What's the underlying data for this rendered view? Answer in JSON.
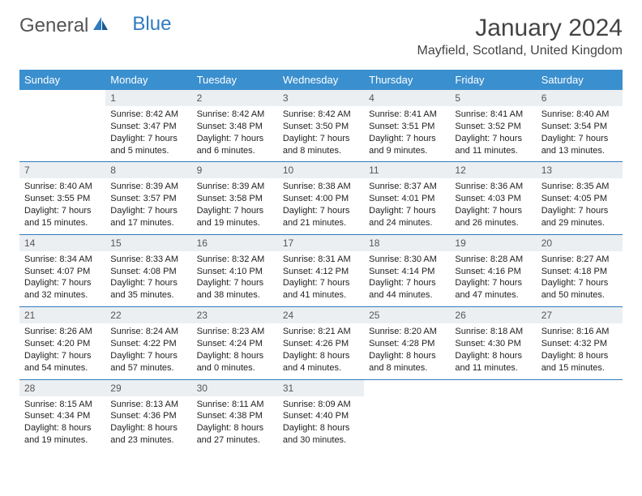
{
  "logo": {
    "text1": "General",
    "text2": "Blue"
  },
  "title": "January 2024",
  "location": "Mayfield, Scotland, United Kingdom",
  "colors": {
    "header_bg": "#3a8fce",
    "border": "#2f7bbf",
    "daynum_bg": "#eceff1",
    "text": "#222222",
    "logo_gray": "#555555",
    "logo_blue": "#2f7bbf"
  },
  "weekdays": [
    "Sunday",
    "Monday",
    "Tuesday",
    "Wednesday",
    "Thursday",
    "Friday",
    "Saturday"
  ],
  "weeks": [
    [
      null,
      {
        "n": "1",
        "sr": "Sunrise: 8:42 AM",
        "ss": "Sunset: 3:47 PM",
        "d1": "Daylight: 7 hours",
        "d2": "and 5 minutes."
      },
      {
        "n": "2",
        "sr": "Sunrise: 8:42 AM",
        "ss": "Sunset: 3:48 PM",
        "d1": "Daylight: 7 hours",
        "d2": "and 6 minutes."
      },
      {
        "n": "3",
        "sr": "Sunrise: 8:42 AM",
        "ss": "Sunset: 3:50 PM",
        "d1": "Daylight: 7 hours",
        "d2": "and 8 minutes."
      },
      {
        "n": "4",
        "sr": "Sunrise: 8:41 AM",
        "ss": "Sunset: 3:51 PM",
        "d1": "Daylight: 7 hours",
        "d2": "and 9 minutes."
      },
      {
        "n": "5",
        "sr": "Sunrise: 8:41 AM",
        "ss": "Sunset: 3:52 PM",
        "d1": "Daylight: 7 hours",
        "d2": "and 11 minutes."
      },
      {
        "n": "6",
        "sr": "Sunrise: 8:40 AM",
        "ss": "Sunset: 3:54 PM",
        "d1": "Daylight: 7 hours",
        "d2": "and 13 minutes."
      }
    ],
    [
      {
        "n": "7",
        "sr": "Sunrise: 8:40 AM",
        "ss": "Sunset: 3:55 PM",
        "d1": "Daylight: 7 hours",
        "d2": "and 15 minutes."
      },
      {
        "n": "8",
        "sr": "Sunrise: 8:39 AM",
        "ss": "Sunset: 3:57 PM",
        "d1": "Daylight: 7 hours",
        "d2": "and 17 minutes."
      },
      {
        "n": "9",
        "sr": "Sunrise: 8:39 AM",
        "ss": "Sunset: 3:58 PM",
        "d1": "Daylight: 7 hours",
        "d2": "and 19 minutes."
      },
      {
        "n": "10",
        "sr": "Sunrise: 8:38 AM",
        "ss": "Sunset: 4:00 PM",
        "d1": "Daylight: 7 hours",
        "d2": "and 21 minutes."
      },
      {
        "n": "11",
        "sr": "Sunrise: 8:37 AM",
        "ss": "Sunset: 4:01 PM",
        "d1": "Daylight: 7 hours",
        "d2": "and 24 minutes."
      },
      {
        "n": "12",
        "sr": "Sunrise: 8:36 AM",
        "ss": "Sunset: 4:03 PM",
        "d1": "Daylight: 7 hours",
        "d2": "and 26 minutes."
      },
      {
        "n": "13",
        "sr": "Sunrise: 8:35 AM",
        "ss": "Sunset: 4:05 PM",
        "d1": "Daylight: 7 hours",
        "d2": "and 29 minutes."
      }
    ],
    [
      {
        "n": "14",
        "sr": "Sunrise: 8:34 AM",
        "ss": "Sunset: 4:07 PM",
        "d1": "Daylight: 7 hours",
        "d2": "and 32 minutes."
      },
      {
        "n": "15",
        "sr": "Sunrise: 8:33 AM",
        "ss": "Sunset: 4:08 PM",
        "d1": "Daylight: 7 hours",
        "d2": "and 35 minutes."
      },
      {
        "n": "16",
        "sr": "Sunrise: 8:32 AM",
        "ss": "Sunset: 4:10 PM",
        "d1": "Daylight: 7 hours",
        "d2": "and 38 minutes."
      },
      {
        "n": "17",
        "sr": "Sunrise: 8:31 AM",
        "ss": "Sunset: 4:12 PM",
        "d1": "Daylight: 7 hours",
        "d2": "and 41 minutes."
      },
      {
        "n": "18",
        "sr": "Sunrise: 8:30 AM",
        "ss": "Sunset: 4:14 PM",
        "d1": "Daylight: 7 hours",
        "d2": "and 44 minutes."
      },
      {
        "n": "19",
        "sr": "Sunrise: 8:28 AM",
        "ss": "Sunset: 4:16 PM",
        "d1": "Daylight: 7 hours",
        "d2": "and 47 minutes."
      },
      {
        "n": "20",
        "sr": "Sunrise: 8:27 AM",
        "ss": "Sunset: 4:18 PM",
        "d1": "Daylight: 7 hours",
        "d2": "and 50 minutes."
      }
    ],
    [
      {
        "n": "21",
        "sr": "Sunrise: 8:26 AM",
        "ss": "Sunset: 4:20 PM",
        "d1": "Daylight: 7 hours",
        "d2": "and 54 minutes."
      },
      {
        "n": "22",
        "sr": "Sunrise: 8:24 AM",
        "ss": "Sunset: 4:22 PM",
        "d1": "Daylight: 7 hours",
        "d2": "and 57 minutes."
      },
      {
        "n": "23",
        "sr": "Sunrise: 8:23 AM",
        "ss": "Sunset: 4:24 PM",
        "d1": "Daylight: 8 hours",
        "d2": "and 0 minutes."
      },
      {
        "n": "24",
        "sr": "Sunrise: 8:21 AM",
        "ss": "Sunset: 4:26 PM",
        "d1": "Daylight: 8 hours",
        "d2": "and 4 minutes."
      },
      {
        "n": "25",
        "sr": "Sunrise: 8:20 AM",
        "ss": "Sunset: 4:28 PM",
        "d1": "Daylight: 8 hours",
        "d2": "and 8 minutes."
      },
      {
        "n": "26",
        "sr": "Sunrise: 8:18 AM",
        "ss": "Sunset: 4:30 PM",
        "d1": "Daylight: 8 hours",
        "d2": "and 11 minutes."
      },
      {
        "n": "27",
        "sr": "Sunrise: 8:16 AM",
        "ss": "Sunset: 4:32 PM",
        "d1": "Daylight: 8 hours",
        "d2": "and 15 minutes."
      }
    ],
    [
      {
        "n": "28",
        "sr": "Sunrise: 8:15 AM",
        "ss": "Sunset: 4:34 PM",
        "d1": "Daylight: 8 hours",
        "d2": "and 19 minutes."
      },
      {
        "n": "29",
        "sr": "Sunrise: 8:13 AM",
        "ss": "Sunset: 4:36 PM",
        "d1": "Daylight: 8 hours",
        "d2": "and 23 minutes."
      },
      {
        "n": "30",
        "sr": "Sunrise: 8:11 AM",
        "ss": "Sunset: 4:38 PM",
        "d1": "Daylight: 8 hours",
        "d2": "and 27 minutes."
      },
      {
        "n": "31",
        "sr": "Sunrise: 8:09 AM",
        "ss": "Sunset: 4:40 PM",
        "d1": "Daylight: 8 hours",
        "d2": "and 30 minutes."
      },
      null,
      null,
      null
    ]
  ]
}
